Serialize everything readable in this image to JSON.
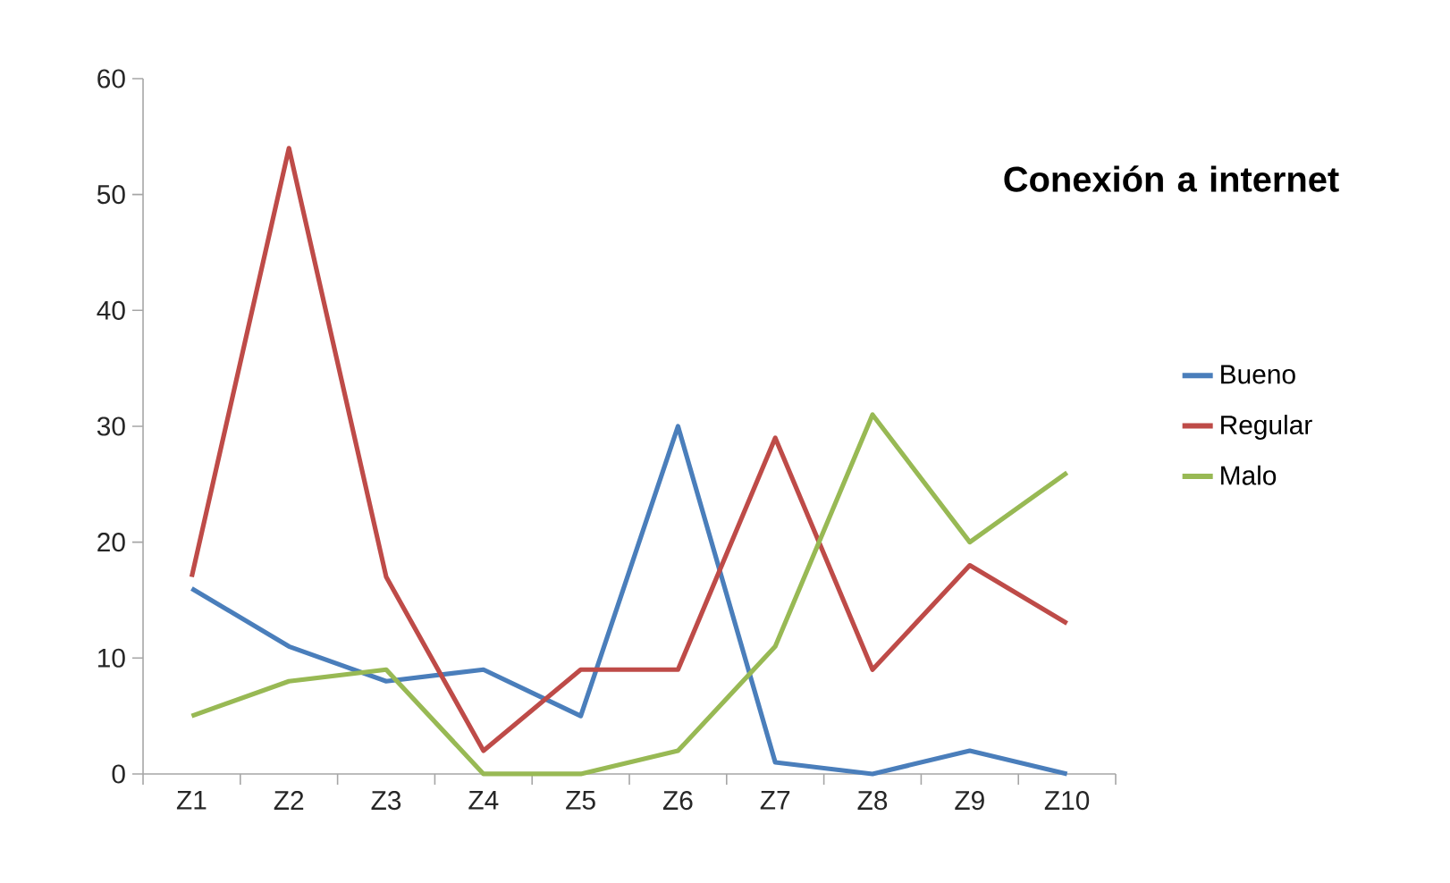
{
  "chart_data": {
    "type": "line",
    "title": "Conexión a internet",
    "categories": [
      "Z1",
      "Z2",
      "Z3",
      "Z4",
      "Z5",
      "Z6",
      "Z7",
      "Z8",
      "Z9",
      "Z10"
    ],
    "series": [
      {
        "name": "Bueno",
        "color": "#4a7ebb",
        "values": [
          16,
          11,
          8,
          9,
          5,
          30,
          1,
          0,
          2,
          0
        ]
      },
      {
        "name": "Regular",
        "color": "#be4b48",
        "values": [
          17,
          54,
          17,
          2,
          9,
          9,
          29,
          9,
          18,
          13
        ]
      },
      {
        "name": "Malo",
        "color": "#98b954",
        "values": [
          5,
          8,
          9,
          0,
          0,
          2,
          11,
          31,
          20,
          26
        ]
      }
    ],
    "ylim": [
      0,
      60
    ],
    "yticks": [
      0,
      10,
      20,
      30,
      40,
      50,
      60
    ],
    "grid": false,
    "legend": "right",
    "marker": "none",
    "line_style": "solid"
  }
}
